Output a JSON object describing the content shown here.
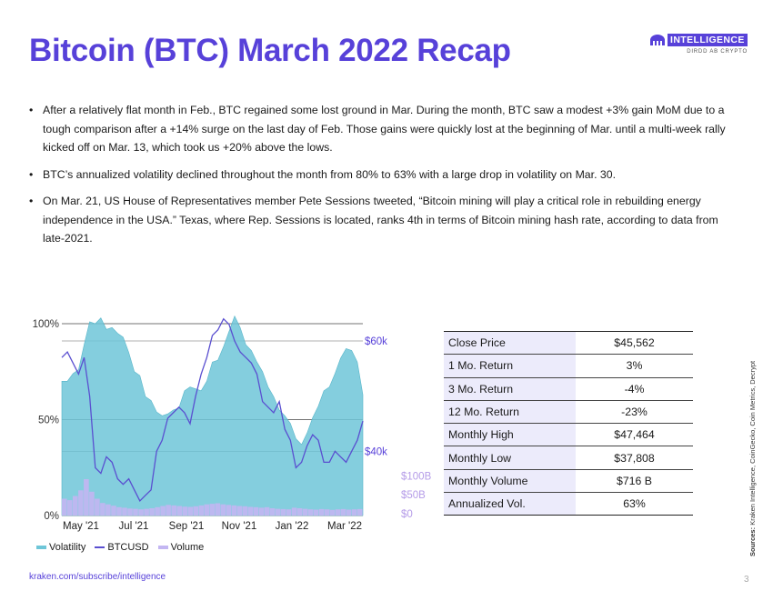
{
  "title": "Bitcoin (BTC) March 2022 Recap",
  "brand": {
    "word": "INTELLIGENCE",
    "sub": "DIRDD AB CRYPTO",
    "color": "#5741d9"
  },
  "bullets": [
    "After a relatively flat month in Feb., BTC regained some lost ground in Mar. During the month, BTC saw a modest +3% gain MoM due to a tough comparison after a +14% surge on the last day of Feb. Those gains were quickly lost at the beginning of Mar. until a multi-week rally kicked off on Mar. 13, which took us +20% above the lows.",
    "BTC’s annualized volatility declined throughout the month from 80% to 63% with a large drop in volatility on Mar. 30.",
    "On Mar. 21, US House of Representatives member Pete Sessions tweeted, “Bitcoin mining will play a critical role in rebuilding energy independence in the USA.” Texas, where Rep. Sessions is located, ranks 4th in terms of Bitcoin mining hash rate, according to data from late-2021."
  ],
  "bullet_marker": "•",
  "stats_table": [
    {
      "label": "Close Price",
      "value": "$45,562"
    },
    {
      "label": "1 Mo. Return",
      "value": "3%"
    },
    {
      "label": "3 Mo. Return",
      "value": "-4%"
    },
    {
      "label": "12 Mo. Return",
      "value": "-23%"
    },
    {
      "label": "Monthly High",
      "value": "$47,464"
    },
    {
      "label": "Monthly Low",
      "value": "$37,808"
    },
    {
      "label": "Monthly Volume",
      "value": "$716 B"
    },
    {
      "label": "Annualized Vol.",
      "value": "63%"
    }
  ],
  "source_note": {
    "label": "Sources:",
    "text": " Kraken Intelligence, CoinGecko, Coin Metrics, Decrypt"
  },
  "footer_link": "kraken.com/subscribe/intelligence",
  "page_number": "3",
  "chart_data": {
    "type": "area",
    "x_ticks": [
      "May '21",
      "Jul '21",
      "Sep '21",
      "Nov '21",
      "Jan '22",
      "Mar '22"
    ],
    "y_left_ticks": [
      "0%",
      "50%",
      "100%"
    ],
    "y_left_range": [
      0,
      100
    ],
    "y_right_price_ticks": [
      "$40k",
      "$60k"
    ],
    "y_right_volume_ticks": [
      "$0",
      "$50B",
      "$100B"
    ],
    "grid": true,
    "legend_position": "bottom-left",
    "colors": {
      "volatility": "#6ec6d8",
      "btcusd": "#5a4fd0",
      "volume": "#c3b6f2",
      "price_axis": "#5741d9",
      "volume_axis": "#b59ce8"
    },
    "series": [
      {
        "name": "Volatility",
        "y": [
          70,
          70,
          74,
          76,
          89,
          101,
          100,
          103,
          97,
          98,
          95,
          93,
          85,
          75,
          73,
          62,
          60,
          54,
          52,
          53,
          55,
          56,
          65,
          67,
          66,
          65,
          70,
          80,
          81,
          88,
          96,
          104,
          98,
          89,
          86,
          80,
          75,
          67,
          62,
          55,
          52,
          48,
          40,
          37,
          43,
          51,
          57,
          65,
          67,
          74,
          82,
          87,
          86,
          80,
          63
        ]
      },
      {
        "name": "BTCUSD",
        "y": [
          57,
          58,
          56,
          54,
          57,
          50,
          37,
          36,
          39,
          38,
          35,
          34,
          35,
          33,
          31,
          32,
          33,
          40,
          42,
          46,
          47,
          48,
          47,
          45,
          50,
          54,
          57,
          61,
          62,
          64,
          63,
          60,
          58,
          57,
          56,
          54,
          49,
          48,
          47,
          49,
          44,
          42,
          37,
          38,
          41,
          43,
          42,
          38,
          38,
          40,
          39,
          38,
          40,
          42,
          45.5
        ]
      },
      {
        "name": "Volume",
        "y": [
          60,
          55,
          70,
          90,
          130,
          85,
          60,
          45,
          40,
          35,
          30,
          28,
          25,
          24,
          22,
          24,
          26,
          30,
          34,
          38,
          36,
          34,
          32,
          31,
          33,
          36,
          40,
          42,
          44,
          40,
          38,
          36,
          34,
          33,
          31,
          30,
          28,
          30,
          26,
          24,
          23,
          22,
          28,
          26,
          24,
          22,
          21,
          23,
          22,
          20,
          22,
          23,
          21,
          22,
          23
        ]
      }
    ]
  }
}
